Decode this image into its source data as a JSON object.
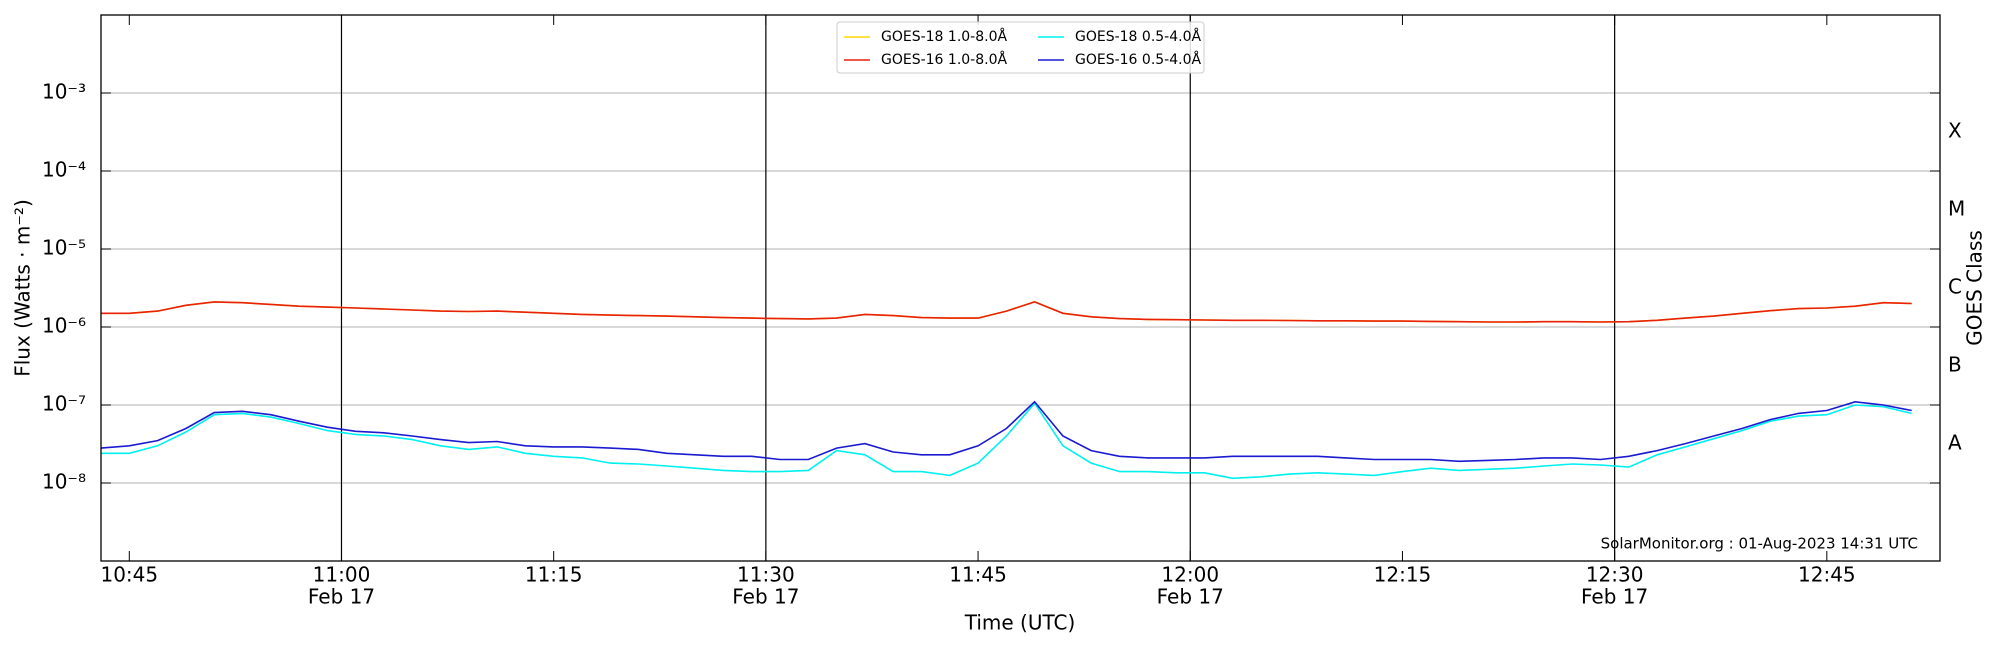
{
  "chart_data": {
    "type": "line",
    "xlabel": "Time (UTC)",
    "ylabel": "Flux (Watts · m⁻²)",
    "y2label": "GOES Class",
    "annotation": "SolarMonitor.org : 01-Aug-2023 14:31 UTC",
    "log_y": true,
    "grid": true,
    "legend": "upper center",
    "legend_columns": 2,
    "xlim": [
      "10:43",
      "12:53"
    ],
    "xticks": [
      "10:45",
      {
        "value": "11:00",
        "label": [
          "11:00",
          "Feb 17"
        ]
      },
      "11:15",
      {
        "value": "11:30",
        "label": [
          "11:30",
          "Feb 17"
        ]
      },
      "11:45",
      {
        "value": "12:00",
        "label": [
          "12:00",
          "Feb 17"
        ]
      },
      "12:15",
      {
        "value": "12:30",
        "label": [
          "12:30",
          "Feb 17"
        ]
      },
      "12:45"
    ],
    "ylim": [
      1e-09,
      0.01
    ],
    "yticks": [
      {
        "value": 1e-08,
        "label": "10⁻⁸"
      },
      {
        "value": 1e-07,
        "label": "10⁻⁷"
      },
      {
        "value": 1e-06,
        "label": "10⁻⁶"
      },
      {
        "value": 1e-05,
        "label": "10⁻⁵"
      },
      {
        "value": 0.0001,
        "label": "10⁻⁴"
      },
      {
        "value": 0.001,
        "label": "10⁻³"
      }
    ],
    "y2lim": [
      1e-09,
      0.01
    ],
    "y2ticks": [
      {
        "value": 3.16e-08,
        "label": "A"
      },
      {
        "value": 3.16e-07,
        "label": "B"
      },
      {
        "value": 3.16e-06,
        "label": "C"
      },
      {
        "value": 3.16e-05,
        "label": "M"
      },
      {
        "value": 0.000316,
        "label": "X"
      }
    ],
    "x": [
      "10:43",
      "10:45",
      "10:47",
      "10:49",
      "10:51",
      "10:53",
      "10:55",
      "10:57",
      "10:59",
      "11:01",
      "11:03",
      "11:05",
      "11:07",
      "11:09",
      "11:11",
      "11:13",
      "11:15",
      "11:17",
      "11:19",
      "11:21",
      "11:23",
      "11:25",
      "11:27",
      "11:29",
      "11:31",
      "11:33",
      "11:35",
      "11:37",
      "11:39",
      "11:41",
      "11:43",
      "11:45",
      "11:47",
      "11:49",
      "11:51",
      "11:53",
      "11:55",
      "11:57",
      "11:59",
      "12:01",
      "12:03",
      "12:05",
      "12:07",
      "12:09",
      "12:11",
      "12:13",
      "12:15",
      "12:17",
      "12:19",
      "12:21",
      "12:23",
      "12:25",
      "12:27",
      "12:29",
      "12:31",
      "12:33",
      "12:35",
      "12:37",
      "12:39",
      "12:41",
      "12:43",
      "12:45",
      "12:47",
      "12:49",
      "12:51"
    ],
    "series": [
      {
        "name": "GOES-18 1.0-8.0Å",
        "color": "#ffd700",
        "values": [
          1.5e-06,
          1.5e-06,
          1.6e-06,
          1.9e-06,
          2.1e-06,
          2.05e-06,
          1.95e-06,
          1.85e-06,
          1.8e-06,
          1.75e-06,
          1.7e-06,
          1.65e-06,
          1.6e-06,
          1.58e-06,
          1.6e-06,
          1.55e-06,
          1.5e-06,
          1.45e-06,
          1.42e-06,
          1.4e-06,
          1.38e-06,
          1.35e-06,
          1.32e-06,
          1.3e-06,
          1.28e-06,
          1.27e-06,
          1.3e-06,
          1.45e-06,
          1.4e-06,
          1.32e-06,
          1.3e-06,
          1.3e-06,
          1.6e-06,
          2.1e-06,
          1.5e-06,
          1.35e-06,
          1.28e-06,
          1.25e-06,
          1.24e-06,
          1.23e-06,
          1.22e-06,
          1.22e-06,
          1.21e-06,
          1.2e-06,
          1.2e-06,
          1.19e-06,
          1.19e-06,
          1.18e-06,
          1.17e-06,
          1.16e-06,
          1.16e-06,
          1.17e-06,
          1.17e-06,
          1.16e-06,
          1.17e-06,
          1.22e-06,
          1.3e-06,
          1.38e-06,
          1.5e-06,
          1.62e-06,
          1.72e-06,
          1.75e-06,
          1.85e-06,
          2.05e-06,
          2e-06
        ]
      },
      {
        "name": "GOES-16 1.0-8.0Å",
        "color": "#e8200c",
        "values": [
          1.5e-06,
          1.5e-06,
          1.6e-06,
          1.9e-06,
          2.1e-06,
          2.05e-06,
          1.95e-06,
          1.85e-06,
          1.8e-06,
          1.75e-06,
          1.7e-06,
          1.65e-06,
          1.6e-06,
          1.58e-06,
          1.6e-06,
          1.55e-06,
          1.5e-06,
          1.45e-06,
          1.42e-06,
          1.4e-06,
          1.38e-06,
          1.35e-06,
          1.32e-06,
          1.3e-06,
          1.28e-06,
          1.27e-06,
          1.3e-06,
          1.45e-06,
          1.4e-06,
          1.32e-06,
          1.3e-06,
          1.3e-06,
          1.6e-06,
          2.1e-06,
          1.5e-06,
          1.35e-06,
          1.28e-06,
          1.25e-06,
          1.24e-06,
          1.23e-06,
          1.22e-06,
          1.22e-06,
          1.21e-06,
          1.2e-06,
          1.2e-06,
          1.19e-06,
          1.19e-06,
          1.18e-06,
          1.17e-06,
          1.16e-06,
          1.16e-06,
          1.17e-06,
          1.17e-06,
          1.16e-06,
          1.17e-06,
          1.22e-06,
          1.3e-06,
          1.38e-06,
          1.5e-06,
          1.62e-06,
          1.72e-06,
          1.75e-06,
          1.85e-06,
          2.05e-06,
          2e-06
        ]
      },
      {
        "name": "GOES-18 0.5-4.0Å",
        "color": "#00f0f0",
        "values": [
          2.4e-08,
          2.4e-08,
          3e-08,
          4.5e-08,
          7.5e-08,
          7.8e-08,
          7e-08,
          5.8e-08,
          4.7e-08,
          4.2e-08,
          4e-08,
          3.6e-08,
          3e-08,
          2.7e-08,
          2.9e-08,
          2.4e-08,
          2.2e-08,
          2.1e-08,
          1.8e-08,
          1.75e-08,
          1.65e-08,
          1.55e-08,
          1.45e-08,
          1.4e-08,
          1.4e-08,
          1.45e-08,
          2.6e-08,
          2.3e-08,
          1.4e-08,
          1.4e-08,
          1.25e-08,
          1.8e-08,
          4e-08,
          1.05e-07,
          3e-08,
          1.8e-08,
          1.4e-08,
          1.4e-08,
          1.35e-08,
          1.35e-08,
          1.15e-08,
          1.2e-08,
          1.3e-08,
          1.35e-08,
          1.3e-08,
          1.25e-08,
          1.4e-08,
          1.55e-08,
          1.45e-08,
          1.5e-08,
          1.55e-08,
          1.65e-08,
          1.75e-08,
          1.7e-08,
          1.6e-08,
          2.3e-08,
          2.9e-08,
          3.7e-08,
          4.7e-08,
          6.2e-08,
          7.2e-08,
          7.5e-08,
          1e-07,
          9.5e-08,
          7.8e-08
        ]
      },
      {
        "name": "GOES-16 0.5-4.0Å",
        "color": "#1a1ad0",
        "values": [
          2.8e-08,
          3e-08,
          3.5e-08,
          5e-08,
          8e-08,
          8.3e-08,
          7.5e-08,
          6.2e-08,
          5.2e-08,
          4.6e-08,
          4.4e-08,
          4e-08,
          3.6e-08,
          3.3e-08,
          3.4e-08,
          3e-08,
          2.9e-08,
          2.9e-08,
          2.8e-08,
          2.7e-08,
          2.4e-08,
          2.3e-08,
          2.2e-08,
          2.2e-08,
          2e-08,
          2e-08,
          2.8e-08,
          3.2e-08,
          2.5e-08,
          2.3e-08,
          2.3e-08,
          3e-08,
          5e-08,
          1.1e-07,
          4e-08,
          2.6e-08,
          2.2e-08,
          2.1e-08,
          2.1e-08,
          2.1e-08,
          2.2e-08,
          2.2e-08,
          2.2e-08,
          2.2e-08,
          2.1e-08,
          2e-08,
          2e-08,
          2e-08,
          1.9e-08,
          1.95e-08,
          2e-08,
          2.1e-08,
          2.1e-08,
          2e-08,
          2.2e-08,
          2.6e-08,
          3.2e-08,
          4e-08,
          5e-08,
          6.5e-08,
          7.8e-08,
          8.5e-08,
          1.1e-07,
          1e-07,
          8.5e-08
        ]
      }
    ]
  }
}
